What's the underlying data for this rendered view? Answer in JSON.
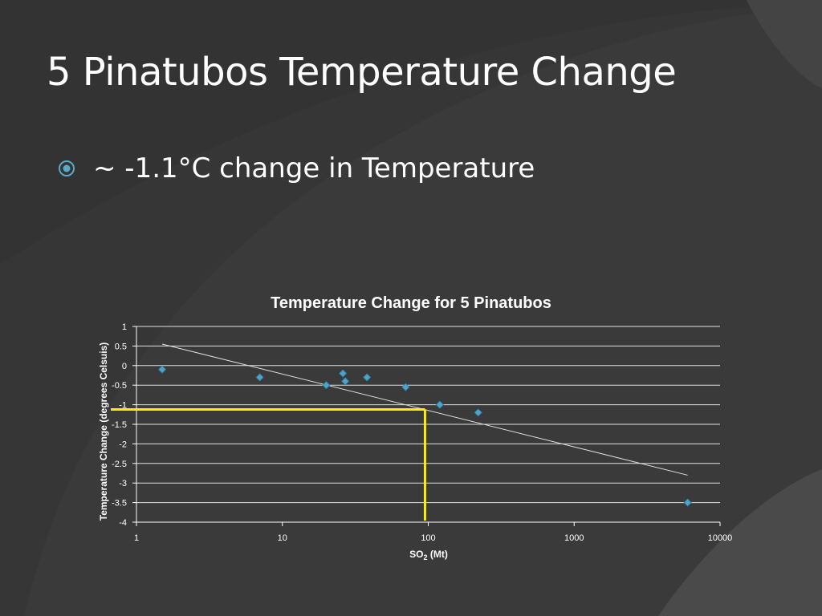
{
  "slide": {
    "title": "5 Pinatubos Temperature Change",
    "bullet": "~ -1.1°C change in Temperature",
    "bullet_icon": "target-circle-icon",
    "colors": {
      "background": "#3a3a3a",
      "text": "#ffffff",
      "accent": "#5aa9c9"
    }
  },
  "chart_data": {
    "type": "scatter",
    "title": "Temperature Change for 5 Pinatubos",
    "xlabel_main": "SO",
    "xlabel_sub": "2",
    "xlabel_unit": " (Mt)",
    "ylabel": "Temperature Change (degrees Celsuis)",
    "xscale": "log",
    "xlim": [
      1,
      10000
    ],
    "ylim": [
      -4,
      1
    ],
    "xticks": [
      1,
      10,
      100,
      1000,
      10000
    ],
    "yticks": [
      1,
      0.5,
      0,
      -0.5,
      -1,
      -1.5,
      -2,
      -2.5,
      -3,
      -3.5,
      -4
    ],
    "grid": true,
    "legend": "none",
    "series": [
      {
        "points": [
          {
            "x": 1.5,
            "y": -0.1
          },
          {
            "x": 7,
            "y": -0.3
          },
          {
            "x": 20,
            "y": -0.5
          },
          {
            "x": 26,
            "y": -0.2
          },
          {
            "x": 27,
            "y": -0.4
          },
          {
            "x": 38,
            "y": -0.3
          },
          {
            "x": 70,
            "y": -0.55
          },
          {
            "x": 120,
            "y": -1.0
          },
          {
            "x": 220,
            "y": -1.2
          },
          {
            "x": 6000,
            "y": -3.5
          }
        ],
        "color": "#4ea3c8"
      }
    ],
    "trendline": {
      "type": "logarithmic",
      "from": {
        "x": 1.5,
        "y": 0.55
      },
      "to": {
        "x": 6000,
        "y": -2.8
      },
      "color": "#dddddd"
    },
    "annotation": {
      "x": 95,
      "y": -1.12,
      "color": "#ffee00",
      "description": "reference lines"
    }
  }
}
